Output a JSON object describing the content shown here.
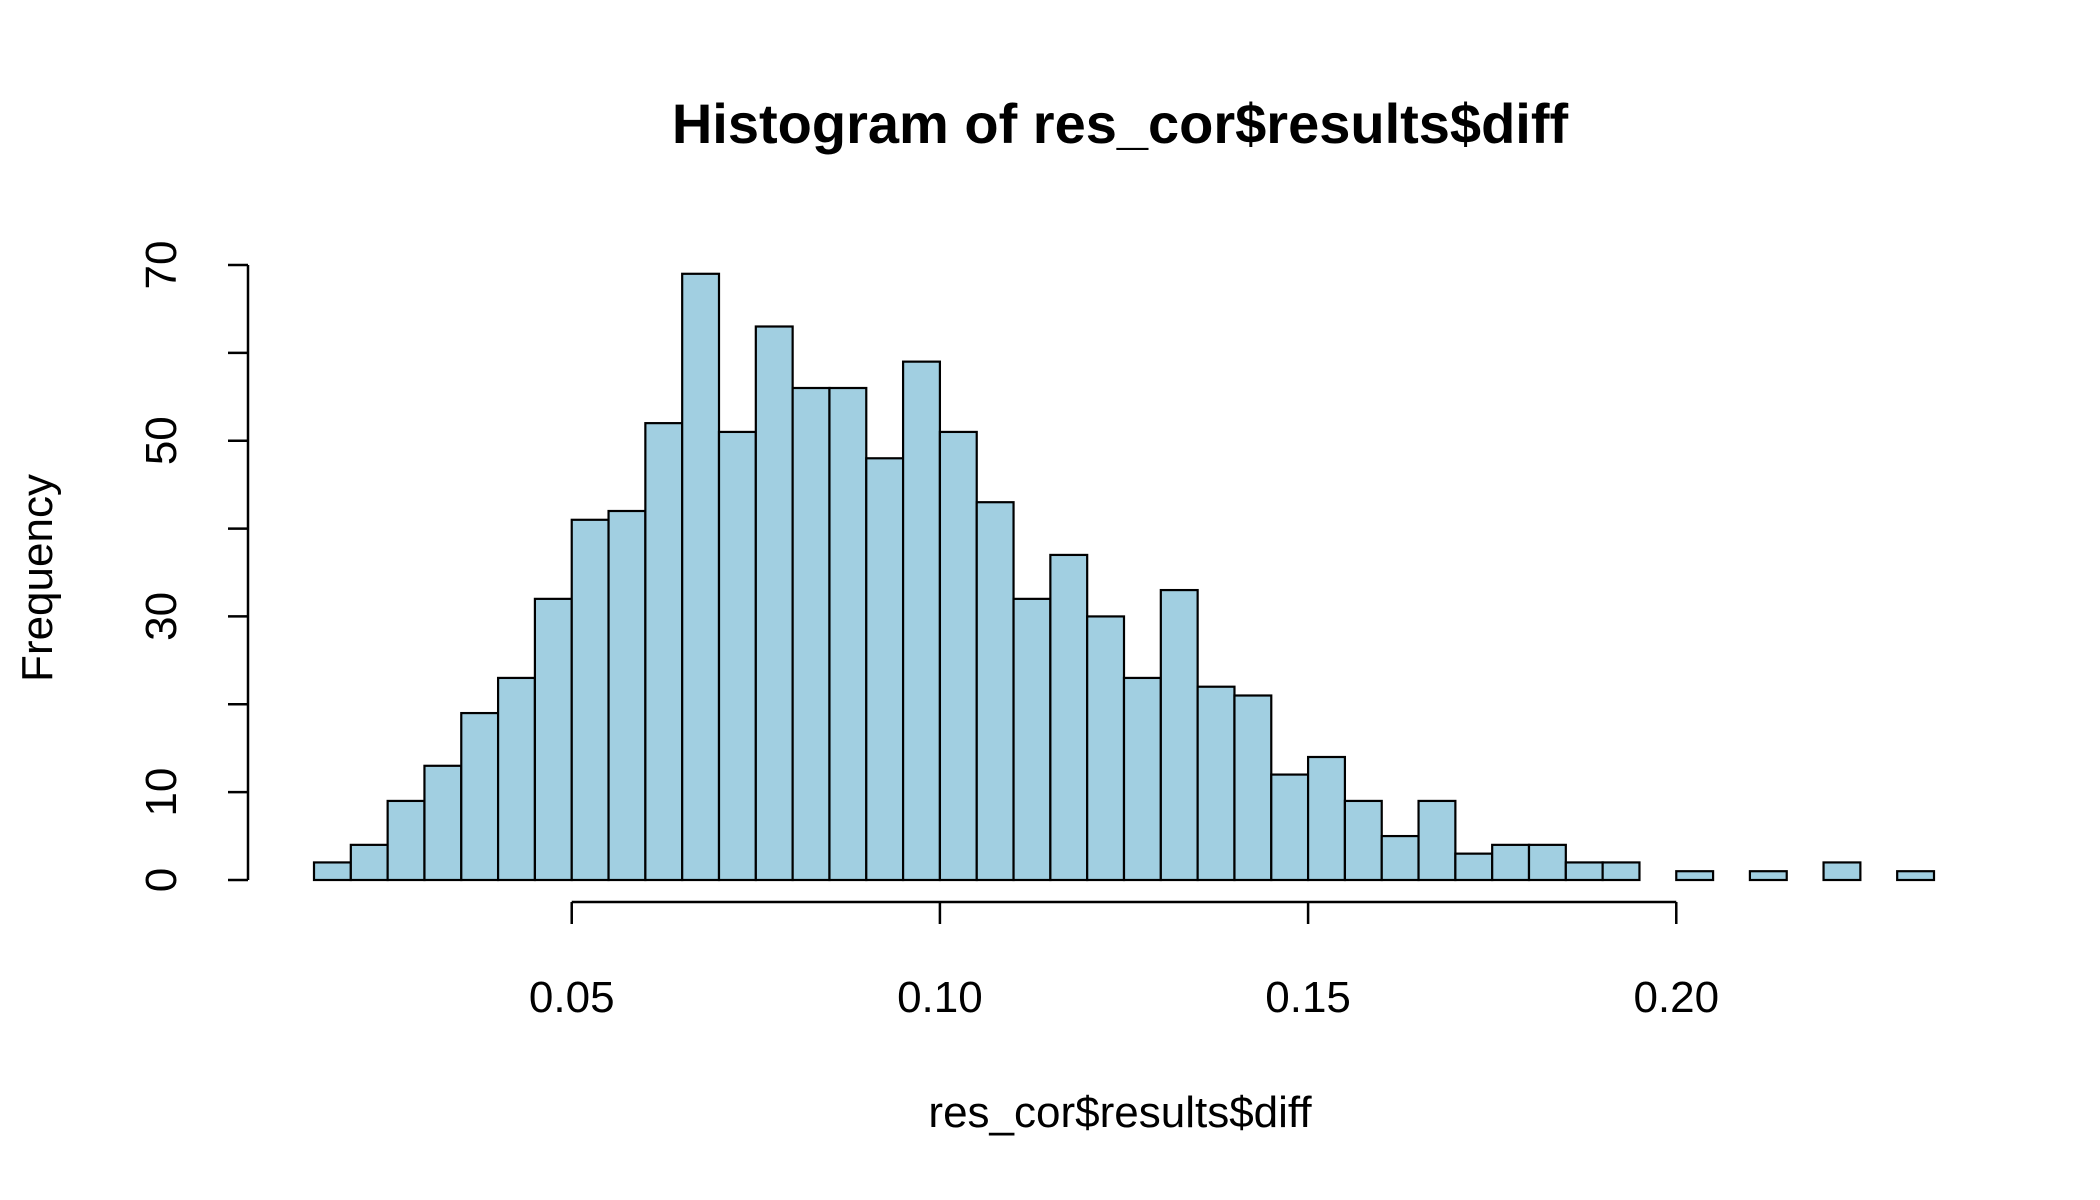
{
  "chart_data": {
    "type": "bar",
    "title": "Histogram of res_cor$results$diff",
    "xlabel": "res_cor$results$diff",
    "ylabel": "Frequency",
    "bin_width": 0.005,
    "bin_start": 0.015,
    "x_ticks": [
      0.05,
      0.1,
      0.15,
      0.2
    ],
    "x_tick_labels": [
      "0.05",
      "0.10",
      "0.15",
      "0.20"
    ],
    "y_ticks": [
      0,
      10,
      20,
      30,
      40,
      50,
      60,
      70
    ],
    "y_tick_labels": [
      "0",
      "10",
      "",
      "30",
      "",
      "50",
      "",
      "70"
    ],
    "xlim": [
      0.015,
      0.235
    ],
    "ylim": [
      0,
      70
    ],
    "values": [
      2,
      4,
      9,
      13,
      19,
      23,
      32,
      41,
      42,
      52,
      69,
      51,
      63,
      56,
      56,
      48,
      59,
      51,
      43,
      32,
      37,
      30,
      23,
      33,
      22,
      21,
      12,
      14,
      9,
      5,
      9,
      3,
      4,
      4,
      2,
      2,
      0,
      1,
      0,
      1,
      0,
      2,
      0,
      1
    ],
    "bar_color": "#a1cfe1",
    "grid": false,
    "legend": "none"
  }
}
